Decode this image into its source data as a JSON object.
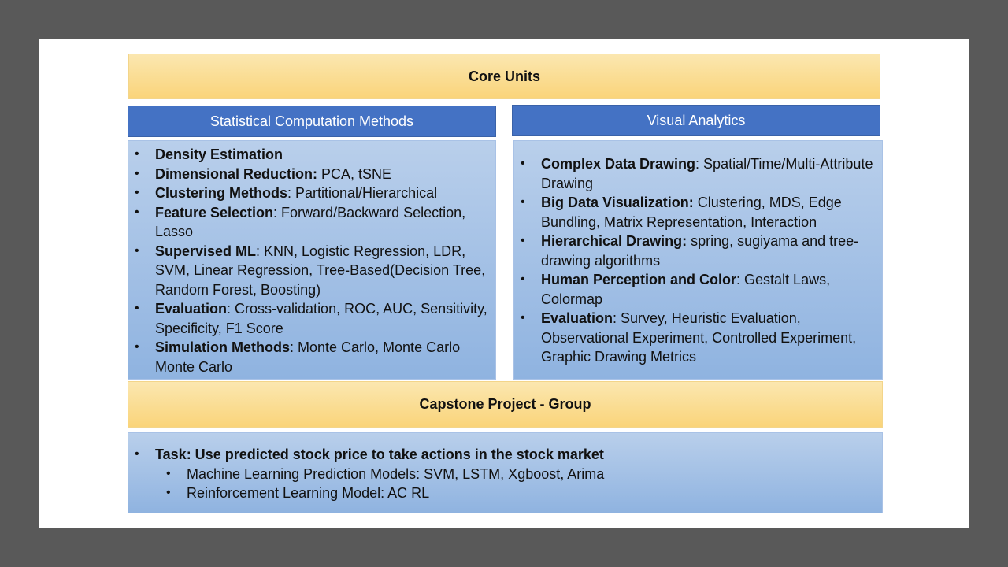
{
  "core_units": {
    "title": "Core Units"
  },
  "left": {
    "header": "Statistical Computation Methods",
    "items": [
      {
        "bold": "Density Estimation",
        "rest": ""
      },
      {
        "bold": "Dimensional Reduction:",
        "rest": " PCA, tSNE"
      },
      {
        "bold": "Clustering Methods",
        "rest": ": Partitional/Hierarchical"
      },
      {
        "bold": "Feature Selection",
        "rest": ": Forward/Backward Selection, Lasso"
      },
      {
        "bold": "Supervised ML",
        "rest": ": KNN, Logistic Regression, LDR, SVM, Linear Regression, Tree-Based(Decision Tree, Random Forest, Boosting)"
      },
      {
        "bold": "Evaluation",
        "rest": ": Cross-validation, ROC, AUC, Sensitivity, Specificity, F1 Score"
      },
      {
        "bold": "Simulation Methods",
        "rest": ": Monte Carlo, Monte Carlo Monte Carlo"
      }
    ]
  },
  "right": {
    "header": "Visual Analytics",
    "items": [
      {
        "bold": "Complex Data Drawing",
        "rest": ": Spatial/Time/Multi-Attribute Drawing"
      },
      {
        "bold": "Big Data Visualization:",
        "rest": " Clustering, MDS, Edge Bundling, Matrix Representation, Interaction"
      },
      {
        "bold": "Hierarchical Drawing:",
        "rest": " spring, sugiyama and tree-drawing algorithms"
      },
      {
        "bold": "Human Perception and Color",
        "rest": ": Gestalt Laws, Colormap"
      },
      {
        "bold": "Evaluation",
        "rest": ": Survey, Heuristic Evaluation, Observational Experiment, Controlled Experiment, Graphic Drawing Metrics"
      }
    ]
  },
  "capstone": {
    "title": "Capstone Project - Group",
    "task": "Task: Use predicted stock price to take actions in the stock market",
    "subitems": [
      "Machine Learning Prediction Models: SVM, LSTM, Xgboost, Arima",
      "Reinforcement Learning Model: AC RL"
    ]
  }
}
